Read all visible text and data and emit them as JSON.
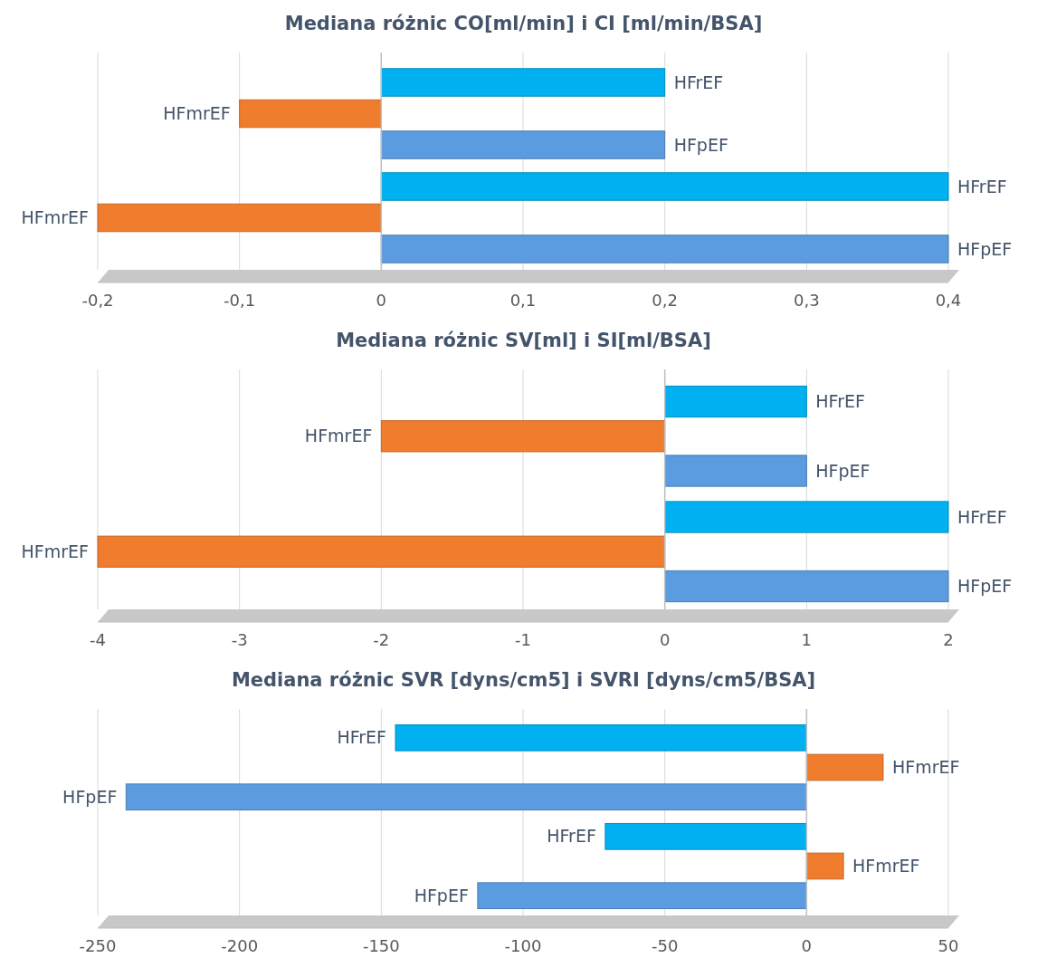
{
  "chart_data": [
    {
      "type": "bar",
      "orientation": "horizontal",
      "title": "Mediana różnic CO[ml/min] i CI [ml/min/BSA]",
      "categories": [
        null,
        null
      ],
      "series": [
        {
          "name": "HFrEF",
          "color": "#00b0f0",
          "values": [
            0.2,
            0.4
          ]
        },
        {
          "name": "HFmrEF",
          "color": "#f07d2e",
          "values": [
            -0.1,
            -0.2
          ]
        },
        {
          "name": "HFpEF",
          "color": "#5b9bdf",
          "values": [
            0.2,
            0.4
          ]
        }
      ],
      "xlim": [
        -0.2,
        0.4
      ],
      "xticks": [
        {
          "value": -0.2,
          "label": "-0,2"
        },
        {
          "value": -0.1,
          "label": "-0,1"
        },
        0,
        {
          "value": 0.1,
          "label": "0,1"
        },
        {
          "value": 0.2,
          "label": "0,2"
        },
        {
          "value": 0.3,
          "label": "0,3"
        },
        {
          "value": 0.4,
          "label": "0,4"
        }
      ],
      "grid": "x",
      "legend": false
    },
    {
      "type": "bar",
      "orientation": "horizontal",
      "title": "Mediana różnic SV[ml] i SI[ml/BSA]",
      "categories": [
        null,
        null
      ],
      "series": [
        {
          "name": "HFrEF",
          "color": "#00b0f0",
          "values": [
            1,
            2
          ]
        },
        {
          "name": "HFmrEF",
          "color": "#f07d2e",
          "values": [
            -2,
            -4
          ]
        },
        {
          "name": "HFpEF",
          "color": "#5b9bdf",
          "values": [
            1,
            2
          ]
        }
      ],
      "xlim": [
        -4,
        2
      ],
      "xticks": [
        -4,
        -3,
        -2,
        -1,
        0,
        1,
        2
      ],
      "grid": "x",
      "legend": false
    },
    {
      "type": "bar",
      "orientation": "horizontal",
      "title": "Mediana różnic SVR [dyns/cm5] i SVRI [dyns/cm5/BSA]",
      "categories": [
        null,
        null
      ],
      "series": [
        {
          "name": "HFrEF",
          "color": "#00b0f0",
          "values": [
            -145,
            -71
          ]
        },
        {
          "name": "HFmrEF",
          "color": "#f07d2e",
          "values": [
            27,
            13
          ]
        },
        {
          "name": "HFpEF",
          "color": "#5b9bdf",
          "values": [
            -240,
            -116
          ]
        }
      ],
      "xlim": [
        -250,
        50
      ],
      "xticks": [
        -250,
        -200,
        -150,
        -100,
        -50,
        0,
        50
      ],
      "grid": "x",
      "legend": false
    }
  ]
}
